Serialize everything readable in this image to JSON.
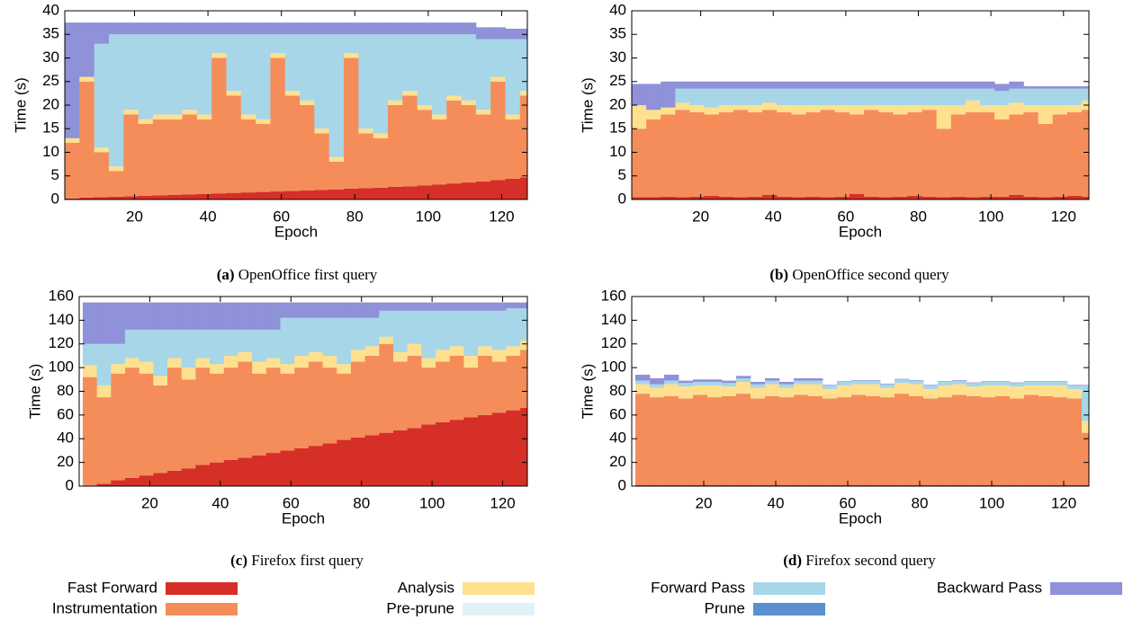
{
  "chart_data": [
    {
      "type": "bar",
      "stacked": true,
      "label": "(a)",
      "title": "OpenOffice first query",
      "xlabel": "Epoch",
      "ylabel": "Time (s)",
      "x": [
        1,
        5,
        9,
        13,
        17,
        21,
        25,
        29,
        33,
        37,
        41,
        45,
        49,
        53,
        57,
        61,
        65,
        69,
        73,
        77,
        81,
        85,
        89,
        93,
        97,
        101,
        105,
        109,
        113,
        117,
        121,
        125
      ],
      "xlim": [
        1,
        127
      ],
      "xticks": [
        20,
        40,
        60,
        80,
        100,
        120
      ],
      "ylim": [
        0,
        40
      ],
      "yticks": [
        0,
        5,
        10,
        15,
        20,
        25,
        30,
        35,
        40
      ],
      "series": [
        {
          "color": "#d62f27",
          "values": [
            0.2,
            0.4,
            0.5,
            0.6,
            0.7,
            0.8,
            0.9,
            1.0,
            1.1,
            1.2,
            1.3,
            1.4,
            1.5,
            1.6,
            1.7,
            1.8,
            1.9,
            2.0,
            2.1,
            2.3,
            2.4,
            2.5,
            2.7,
            2.8,
            3.0,
            3.2,
            3.4,
            3.6,
            3.8,
            4.1,
            4.4,
            4.7
          ]
        },
        {
          "color": "#f58d5a",
          "values": [
            11.8,
            24.6,
            9.5,
            5.4,
            17.3,
            15.2,
            16.1,
            16,
            16.9,
            15.8,
            28.7,
            20.6,
            15.5,
            14.4,
            28.3,
            20.2,
            18.1,
            12,
            5.9,
            27.7,
            11.6,
            10.5,
            17.3,
            19.2,
            16,
            13.8,
            17.6,
            16.4,
            14.2,
            20.9,
            12.6,
            17.3
          ]
        },
        {
          "color": "#fee08f",
          "values": [
            1,
            1,
            1,
            1,
            1,
            1,
            1,
            1,
            1,
            1,
            1,
            1,
            1,
            1,
            1,
            1,
            1,
            1,
            1,
            1,
            1,
            1,
            1,
            1,
            1,
            1,
            1,
            1,
            1,
            1,
            1,
            1
          ]
        },
        {
          "color": "#a6d6e8",
          "values": [
            0,
            0,
            22,
            28,
            16,
            18,
            17,
            17,
            16,
            17,
            4,
            12,
            17,
            18,
            4,
            12,
            14,
            20,
            26,
            4,
            20,
            21,
            14,
            12,
            15,
            17,
            13,
            14,
            15,
            8,
            16,
            11
          ]
        },
        {
          "color": "#8f91d9",
          "values": [
            24.5,
            11.5,
            4.5,
            2.5,
            2.5,
            2.5,
            2.5,
            2.5,
            2.5,
            2.5,
            2.5,
            2.5,
            2.5,
            2.5,
            2.5,
            2.5,
            2.5,
            2.5,
            2.5,
            2.5,
            2.5,
            2.5,
            2.5,
            2.5,
            2.5,
            2.5,
            2.5,
            2.5,
            2.5,
            2.5,
            2.2,
            2.2
          ]
        }
      ]
    },
    {
      "type": "bar",
      "stacked": true,
      "label": "(b)",
      "title": "OpenOffice second query",
      "xlabel": "Epoch",
      "ylabel": "Time (s)",
      "x": [
        1,
        5,
        9,
        13,
        17,
        21,
        25,
        29,
        33,
        37,
        41,
        45,
        49,
        53,
        57,
        61,
        65,
        69,
        73,
        77,
        81,
        85,
        89,
        93,
        97,
        101,
        105,
        109,
        113,
        117,
        121,
        125
      ],
      "xlim": [
        1,
        127
      ],
      "xticks": [
        20,
        40,
        60,
        80,
        100,
        120
      ],
      "ylim": [
        0,
        40
      ],
      "yticks": [
        0,
        5,
        10,
        15,
        20,
        25,
        30,
        35,
        40
      ],
      "series": [
        {
          "color": "#d62f27",
          "values": [
            0.5,
            0.5,
            0.6,
            0.5,
            0.6,
            0.8,
            0.6,
            0.5,
            0.6,
            1.0,
            0.6,
            0.5,
            0.6,
            0.5,
            0.6,
            1.2,
            0.6,
            0.5,
            0.6,
            0.8,
            0.6,
            0.5,
            0.6,
            0.5,
            0.6,
            0.6,
            1.0,
            0.6,
            0.5,
            0.6,
            0.8,
            0.6
          ]
        },
        {
          "color": "#f58d5a",
          "values": [
            14.5,
            16.5,
            17.4,
            18.5,
            17.9,
            17.2,
            17.9,
            18.5,
            17.9,
            18,
            17.9,
            17.5,
            17.9,
            18.5,
            17.9,
            16.8,
            18.4,
            18,
            17.4,
            17.7,
            18.4,
            14.5,
            17.4,
            18,
            17.9,
            16.4,
            17,
            17.9,
            15.5,
            17.4,
            17.7,
            18.4
          ]
        },
        {
          "color": "#fee08f",
          "values": [
            5,
            2,
            1.5,
            1.5,
            1.5,
            1.5,
            1.5,
            1,
            1.5,
            1.5,
            1.5,
            2,
            1.5,
            1,
            1.5,
            2,
            1,
            1.5,
            2,
            1.5,
            1,
            5,
            2,
            2.5,
            1.5,
            3,
            2.5,
            1.5,
            4,
            2,
            1.5,
            2
          ]
        },
        {
          "color": "#a6d6e8",
          "values": [
            0,
            0,
            0,
            3,
            3.5,
            4,
            3.5,
            3.5,
            3.5,
            3,
            3.5,
            3.5,
            3.5,
            3.5,
            3.5,
            3.5,
            3.5,
            3.5,
            3.5,
            3.5,
            3.5,
            3.5,
            3.5,
            2.5,
            3.5,
            3,
            3,
            3.5,
            3.5,
            3.5,
            3.5,
            2.5
          ]
        },
        {
          "color": "#8f91d9",
          "values": [
            4.5,
            5.5,
            5.5,
            1.5,
            1.5,
            1.5,
            1.5,
            1.5,
            1.5,
            1.5,
            1.5,
            1.5,
            1.5,
            1.5,
            1.5,
            1.5,
            1.5,
            1.5,
            1.5,
            1.5,
            1.5,
            1.5,
            1.5,
            1.5,
            1.5,
            1.5,
            1.5,
            0.5,
            0.5,
            0.5,
            0.5,
            0.5
          ]
        }
      ]
    },
    {
      "type": "bar",
      "stacked": true,
      "label": "(c)",
      "title": "Firefox first query",
      "xlabel": "Epoch",
      "ylabel": "Time (s)",
      "x": [
        1,
        5,
        9,
        13,
        17,
        21,
        25,
        29,
        33,
        37,
        41,
        45,
        49,
        53,
        57,
        61,
        65,
        69,
        73,
        77,
        81,
        85,
        89,
        93,
        97,
        101,
        105,
        109,
        113,
        117,
        121,
        125
      ],
      "xlim": [
        0,
        127
      ],
      "xticks": [
        20,
        40,
        60,
        80,
        100,
        120
      ],
      "ylim": [
        0,
        160
      ],
      "yticks": [
        0,
        20,
        40,
        60,
        80,
        100,
        120,
        140,
        160
      ],
      "series": [
        {
          "color": "#d62f27",
          "values": [
            0,
            2,
            5,
            7,
            9,
            11,
            13,
            15,
            18,
            20,
            22,
            24,
            26,
            28,
            30,
            32,
            34,
            36,
            39,
            41,
            43,
            45,
            47,
            49,
            52,
            54,
            56,
            58,
            60,
            62,
            64,
            66
          ]
        },
        {
          "color": "#f58d5a",
          "values": [
            92,
            73,
            90,
            93,
            86,
            74,
            87,
            75,
            82,
            75,
            78,
            81,
            69,
            72,
            65,
            68,
            71,
            64,
            56,
            64,
            67,
            75,
            58,
            61,
            48,
            51,
            54,
            42,
            50,
            43,
            46,
            49
          ]
        },
        {
          "color": "#fee08f",
          "values": [
            10,
            10,
            8,
            8,
            10,
            8,
            8,
            10,
            8,
            8,
            10,
            8,
            10,
            8,
            8,
            10,
            8,
            10,
            8,
            10,
            8,
            6,
            8,
            10,
            8,
            10,
            8,
            10,
            8,
            10,
            8,
            8
          ]
        },
        {
          "color": "#a6d6e8",
          "values": [
            18,
            35,
            17,
            24,
            27,
            39,
            24,
            32,
            24,
            29,
            22,
            19,
            27,
            24,
            39,
            32,
            29,
            32,
            39,
            27,
            24,
            22,
            35,
            28,
            40,
            33,
            30,
            38,
            30,
            33,
            32,
            27
          ]
        },
        {
          "color": "#8f91d9",
          "values": [
            35,
            35,
            35,
            23,
            23,
            23,
            23,
            23,
            23,
            23,
            23,
            23,
            23,
            23,
            13,
            13,
            13,
            13,
            13,
            13,
            13,
            7,
            7,
            7,
            7,
            7,
            7,
            7,
            7,
            7,
            5,
            5
          ]
        }
      ]
    },
    {
      "type": "bar",
      "stacked": true,
      "label": "(d)",
      "title": "Firefox second query",
      "xlabel": "Epoch",
      "ylabel": "Time (s)",
      "x": [
        1,
        5,
        9,
        13,
        17,
        21,
        25,
        29,
        33,
        37,
        41,
        45,
        49,
        53,
        57,
        61,
        65,
        69,
        73,
        77,
        81,
        85,
        89,
        93,
        97,
        101,
        105,
        109,
        113,
        117,
        121,
        125
      ],
      "xlim": [
        0,
        127
      ],
      "xticks": [
        20,
        40,
        60,
        80,
        100,
        120
      ],
      "ylim": [
        0,
        160
      ],
      "yticks": [
        0,
        20,
        40,
        60,
        80,
        100,
        120,
        140,
        160
      ],
      "series": [
        {
          "color": "#d62f27",
          "values": [
            1,
            1,
            1,
            1,
            1,
            1,
            1,
            1,
            1,
            1,
            1,
            1,
            1,
            1,
            1,
            1,
            1,
            1,
            1,
            1,
            1,
            1,
            1,
            1,
            1,
            1,
            1,
            1,
            1,
            1,
            1,
            1
          ]
        },
        {
          "color": "#f58d5a",
          "values": [
            77,
            74,
            75,
            73,
            76,
            74,
            75,
            77,
            73,
            75,
            74,
            76,
            75,
            73,
            74,
            76,
            75,
            74,
            77,
            75,
            73,
            74,
            76,
            75,
            74,
            75,
            73,
            76,
            75,
            74,
            73,
            44
          ]
        },
        {
          "color": "#fee08f",
          "values": [
            8,
            8,
            10,
            10,
            8,
            10,
            8,
            10,
            9,
            10,
            8,
            9,
            10,
            8,
            10,
            9,
            10,
            8,
            9,
            10,
            8,
            10,
            9,
            8,
            10,
            9,
            10,
            8,
            9,
            10,
            8,
            10
          ]
        },
        {
          "color": "#a6d6e8",
          "values": [
            3,
            3,
            3,
            3,
            3,
            3,
            3,
            3,
            3,
            3,
            3,
            3,
            3,
            3,
            3,
            3,
            3,
            3,
            3,
            3,
            3,
            3,
            3,
            3,
            3,
            3,
            3,
            3,
            3,
            3,
            3,
            30
          ]
        },
        {
          "color": "#8f91d9",
          "values": [
            5,
            5,
            5,
            2,
            2,
            2,
            2,
            2,
            2,
            2,
            2,
            2,
            2,
            0.5,
            0.5,
            0.5,
            0.5,
            0.5,
            0.5,
            0.5,
            0.5,
            0.5,
            0.5,
            0.5,
            0.5,
            0.5,
            0.5,
            0.5,
            0.5,
            0.5,
            0.5,
            0.5
          ]
        }
      ]
    }
  ],
  "legend": [
    {
      "name": "Fast Forward",
      "color": "#d62f27"
    },
    {
      "name": "Instrumentation",
      "color": "#f58d5a"
    },
    {
      "name": "Analysis",
      "color": "#fee08f"
    },
    {
      "name": "Pre-prune",
      "color": "#e0f3f8"
    },
    {
      "name": "Forward Pass",
      "color": "#a6d6e8"
    },
    {
      "name": "Prune",
      "color": "#5b8fcf"
    },
    {
      "name": "Backward Pass",
      "color": "#8f91d9"
    }
  ]
}
